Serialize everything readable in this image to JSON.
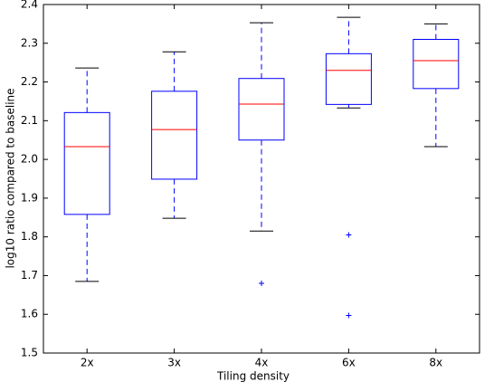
{
  "chart_data": {
    "type": "box",
    "x_label": "Tiling density",
    "y_label": "log10 ratio compared to baseline",
    "categories": [
      "2x",
      "3x",
      "4x",
      "6x",
      "8x"
    ],
    "boxes": [
      {
        "whisker_low": 1.685,
        "q1": 1.858,
        "median": 2.033,
        "q3": 2.121,
        "whisker_high": 2.236,
        "outliers": []
      },
      {
        "whisker_low": 1.848,
        "q1": 1.949,
        "median": 2.077,
        "q3": 2.176,
        "whisker_high": 2.278,
        "outliers": []
      },
      {
        "whisker_low": 1.815,
        "q1": 2.05,
        "median": 2.143,
        "q3": 2.209,
        "whisker_high": 2.353,
        "outliers": [
          1.68
        ]
      },
      {
        "whisker_low": 2.133,
        "q1": 2.142,
        "median": 2.23,
        "q3": 2.273,
        "whisker_high": 2.367,
        "outliers": [
          1.805,
          1.597
        ]
      },
      {
        "whisker_low": 2.033,
        "q1": 2.183,
        "median": 2.255,
        "q3": 2.31,
        "whisker_high": 2.35,
        "outliers": []
      }
    ],
    "box_color": "#0000ff",
    "median_color": "#ff0000",
    "cap_color": "#000000",
    "ylim": [
      1.5,
      2.4
    ],
    "yticks": [
      1.5,
      1.6,
      1.7,
      1.8,
      1.9,
      {
        "value": 2.0,
        "label": "2.0"
      },
      2.1,
      2.2,
      2.3,
      2.4
    ],
    "grid": false
  }
}
